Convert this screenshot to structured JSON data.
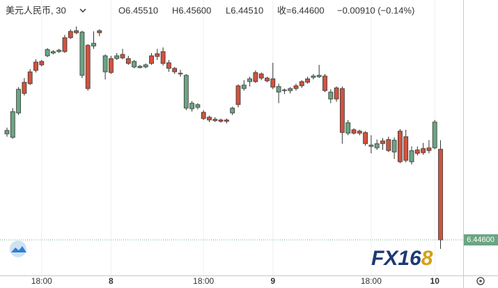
{
  "chart_data": {
    "type": "candlestick",
    "title": "美元人民币, 30",
    "header": {
      "open": "O6.45510",
      "high": "H6.45600",
      "low": "L6.44510",
      "close": "收=6.44600",
      "change": "−0.00910 (−0.14%)"
    },
    "categories": [
      null,
      null,
      null,
      null,
      null,
      null,
      "18:00",
      null,
      null,
      null,
      null,
      null,
      null,
      null,
      null,
      null,
      null,
      null,
      "8",
      null,
      null,
      null,
      null,
      null,
      null,
      null,
      null,
      null,
      null,
      null,
      null,
      null,
      null,
      null,
      "18:00",
      null,
      null,
      null,
      null,
      null,
      null,
      null,
      null,
      null,
      null,
      null,
      "9",
      null,
      null,
      null,
      null,
      null,
      null,
      null,
      null,
      null,
      null,
      null,
      null,
      null,
      null,
      null,
      null,
      "18:00",
      null,
      null,
      null,
      null,
      null,
      null,
      null,
      null,
      null,
      null,
      "10",
      null
    ],
    "open": [
      6.45664,
      6.45629,
      6.45874,
      6.46182,
      6.46287,
      6.46385,
      6.46392,
      6.46448,
      6.46476,
      6.4649,
      6.4663,
      6.46693,
      6.467,
      6.46252,
      6.46553,
      6.46546,
      6.467,
      6.46287,
      6.4642,
      6.4642,
      6.46462,
      6.4642,
      6.46336,
      6.46329,
      6.46336,
      6.46448,
      6.46469,
      6.4649,
      6.46378,
      6.46322,
      6.46266,
      6.45923,
      6.45916,
      6.4593,
      6.45881,
      6.45832,
      6.45811,
      6.45804,
      6.45804,
      6.45874,
      6.46147,
      6.46119,
      6.46189,
      6.4628,
      6.46266,
      6.46224,
      6.46217,
      6.46084,
      6.46098,
      6.46098,
      6.46147,
      6.46189,
      6.46217,
      6.46231,
      6.46238,
      6.46245,
      6.46014,
      6.46126,
      6.46119,
      6.45671,
      6.45706,
      6.45692,
      6.45678,
      6.45538,
      6.45524,
      6.45594,
      6.45608,
      6.45482,
      6.45692,
      6.45636,
      6.45384,
      6.45503,
      6.45517,
      6.45524,
      6.45524,
      6.4551
    ],
    "high": [
      6.45727,
      6.45923,
      6.46133,
      6.46224,
      6.46315,
      6.46413,
      6.46406,
      6.46525,
      6.46504,
      6.46518,
      6.46658,
      6.46714,
      6.46742,
      6.467,
      6.46567,
      6.46693,
      6.46714,
      6.46462,
      6.46448,
      6.46476,
      6.46518,
      6.46448,
      6.46406,
      6.46357,
      6.46371,
      6.46476,
      6.46518,
      6.46532,
      6.46406,
      6.46336,
      6.46308,
      6.46266,
      6.45993,
      6.45972,
      6.45902,
      6.45846,
      6.45832,
      6.45818,
      6.45818,
      6.45937,
      6.46161,
      6.46203,
      6.46238,
      6.46301,
      6.4628,
      6.46238,
      6.46378,
      6.46168,
      6.46119,
      6.46133,
      6.46168,
      6.46203,
      6.46238,
      6.46266,
      6.46357,
      6.46266,
      6.46112,
      6.4614,
      6.4614,
      6.45804,
      6.4572,
      6.45706,
      6.45692,
      6.4565,
      6.45608,
      6.45622,
      6.45636,
      6.45629,
      6.45713,
      6.45706,
      6.45538,
      6.45538,
      6.45573,
      6.45601,
      6.45804,
      6.456
    ],
    "low": [
      6.45636,
      6.45615,
      6.45853,
      6.46049,
      6.46154,
      6.4628,
      6.46343,
      6.46434,
      6.46462,
      6.46476,
      6.46476,
      6.46616,
      6.46665,
      6.46224,
      6.46098,
      6.46518,
      6.46644,
      6.4621,
      6.46266,
      6.46406,
      6.46413,
      6.46357,
      6.46322,
      6.46322,
      6.46322,
      6.46357,
      6.46406,
      6.4635,
      6.46287,
      6.46266,
      6.46238,
      6.45902,
      6.45888,
      6.45909,
      6.45804,
      6.45783,
      6.45783,
      6.45776,
      6.45769,
      6.45853,
      6.4593,
      6.46098,
      6.4614,
      6.46175,
      6.46203,
      6.46182,
      6.46112,
      6.45972,
      6.46063,
      6.4607,
      6.46098,
      6.46126,
      6.46168,
      6.4621,
      6.46224,
      6.46084,
      6.45972,
      6.45986,
      6.45566,
      6.4565,
      6.45657,
      6.4565,
      6.45545,
      6.45468,
      6.45503,
      6.45503,
      6.45482,
      6.45412,
      6.4537,
      6.45377,
      6.45356,
      6.45447,
      6.45454,
      6.45468,
      6.4551,
      6.4451
    ],
    "close": [
      6.45699,
      6.45888,
      6.46112,
      6.4607,
      6.46168,
      6.46301,
      6.46357,
      6.46511,
      6.4649,
      6.46504,
      6.4649,
      6.4663,
      6.46679,
      6.46686,
      6.46119,
      6.46574,
      6.46679,
      6.46448,
      6.4628,
      6.46448,
      6.46427,
      6.46371,
      6.46392,
      6.46343,
      6.46357,
      6.46371,
      6.46441,
      6.46371,
      6.46322,
      6.46287,
      6.46273,
      6.46252,
      6.45972,
      6.45958,
      6.45818,
      6.45804,
      6.45797,
      6.4579,
      6.4579,
      6.45923,
      6.45958,
      6.46154,
      6.46217,
      6.46189,
      6.46224,
      6.46196,
      6.46133,
      6.4614,
      6.46105,
      6.46119,
      6.46119,
      6.46147,
      6.46182,
      6.46245,
      6.46252,
      6.46098,
      6.46084,
      6.46014,
      6.45678,
      6.45776,
      6.45671,
      6.45671,
      6.45566,
      6.45552,
      6.45566,
      6.45566,
      6.45496,
      6.45601,
      6.45384,
      6.45398,
      6.45496,
      6.45468,
      6.45475,
      6.45496,
      6.45783,
      6.446
    ],
    "up_color": "#6ba583",
    "down_color": "#d0533f",
    "ylim": [
      6.44243,
      6.47008
    ],
    "grid": true,
    "last_price": 6.446,
    "last_price_label": "6.44600",
    "watermark": [
      "FX16",
      "8"
    ]
  }
}
